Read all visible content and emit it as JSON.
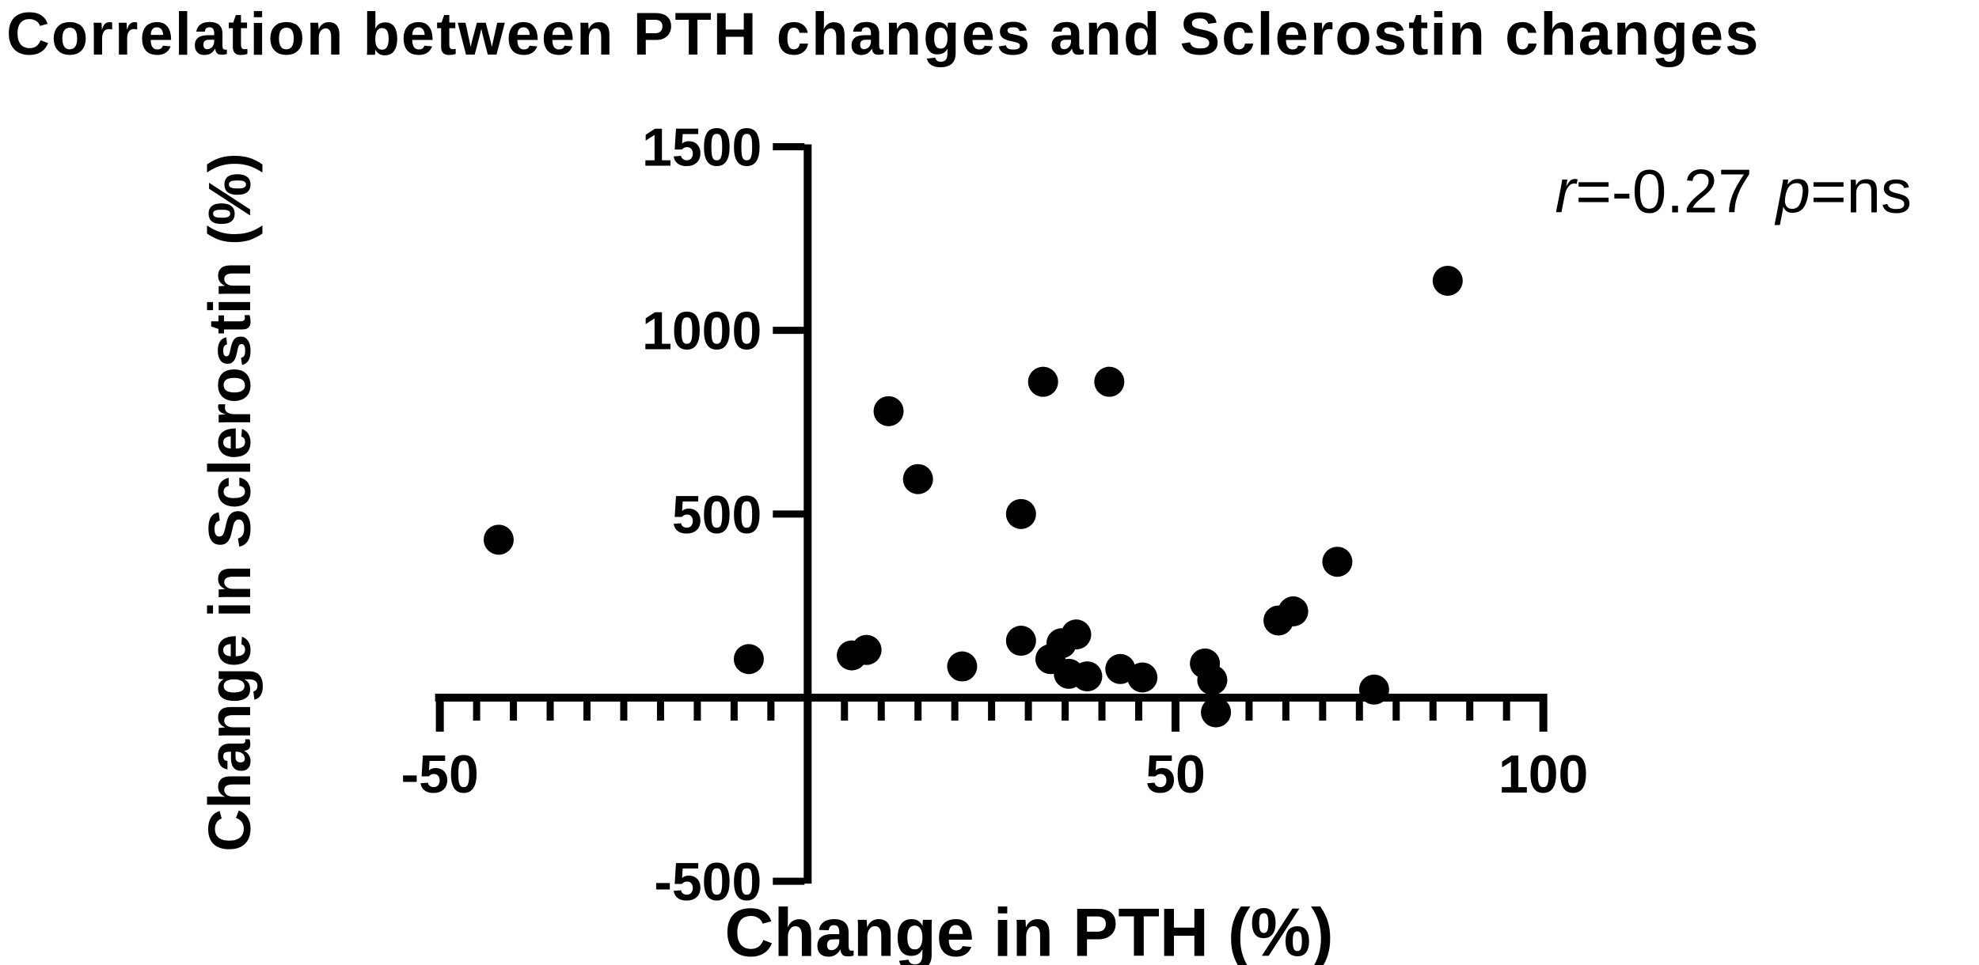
{
  "figure": {
    "title": "Correlation between PTH changes and Sclerostin changes",
    "annotation": {
      "r_symbol": "r",
      "r_value": "=-0.27",
      "p_symbol": "p",
      "p_value": "=ns"
    },
    "y_axis": {
      "label": "Change in Sclerostin (%)"
    },
    "x_axis": {
      "label": "Change in PTH (%)"
    },
    "colors": {
      "foreground": "#000000",
      "background": "#ffffff"
    }
  },
  "chart_data": {
    "type": "scatter",
    "title": "Correlation between PTH changes and Sclerostin changes",
    "xlabel": "Change in PTH (%)",
    "ylabel": "Change in Sclerostin (%)",
    "xlim": [
      -50,
      100
    ],
    "ylim": [
      -500,
      1500
    ],
    "x_major_ticks": [
      -50,
      50,
      100
    ],
    "x_minor_tick_step": 5,
    "y_major_ticks": [
      1500,
      1000,
      500,
      -500
    ],
    "grid": false,
    "legend": false,
    "marker": {
      "shape": "circle",
      "color": "#000000",
      "radius_px": 19
    },
    "annotation": "r=-0.27 p=ns",
    "points": [
      [
        -42,
        430
      ],
      [
        -8,
        105
      ],
      [
        6,
        115
      ],
      [
        8,
        130
      ],
      [
        11,
        780
      ],
      [
        15,
        595
      ],
      [
        21,
        85
      ],
      [
        29,
        500
      ],
      [
        29,
        155
      ],
      [
        32,
        860
      ],
      [
        41,
        860
      ],
      [
        33,
        105
      ],
      [
        34.5,
        148
      ],
      [
        36.5,
        172
      ],
      [
        35.5,
        65
      ],
      [
        38,
        58
      ],
      [
        42.5,
        78
      ],
      [
        45.5,
        55
      ],
      [
        54,
        93
      ],
      [
        55,
        48
      ],
      [
        55.5,
        -40
      ],
      [
        64,
        210
      ],
      [
        66,
        235
      ],
      [
        72,
        370
      ],
      [
        77,
        22
      ],
      [
        87,
        1135
      ]
    ]
  }
}
